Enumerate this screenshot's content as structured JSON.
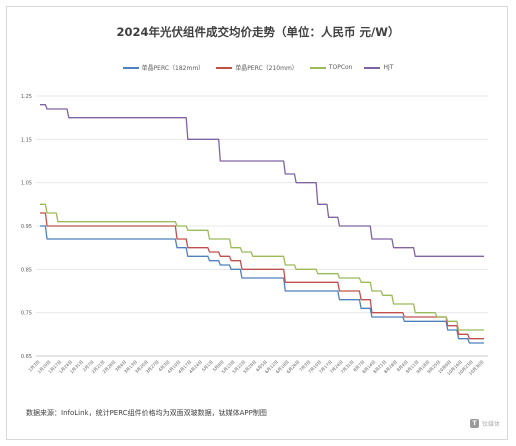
{
  "chart_data": {
    "type": "line",
    "title": "2024年光伏组件成交均价走势（单位：人民币 元/W）",
    "xlabel": "",
    "ylabel": "",
    "ylim": [
      0.65,
      1.25
    ],
    "yticks": [
      "0.65",
      "0.75",
      "0.85",
      "0.95",
      "1.05",
      "1.15",
      "1.25"
    ],
    "grid": true,
    "legend_position": "top",
    "categories": [
      "1月3日",
      "1月10日",
      "1月17日",
      "1月24日",
      "1月31日",
      "2月7日",
      "2月21日",
      "2月28日",
      "3月6日",
      "3月13日",
      "3月20日",
      "3月27日",
      "4月3日",
      "4月10日",
      "4月17日",
      "4月24日",
      "5月1日",
      "5月8日",
      "5月15日",
      "5月22日",
      "5月29日",
      "6月5日",
      "6月12日",
      "6月19日",
      "6月26日",
      "7月3日",
      "7月10日",
      "7月17日",
      "7月24日",
      "7月31日",
      "8月7日",
      "8月14日",
      "8月21日",
      "8月28日",
      "9月4日",
      "9月11日",
      "9月18日",
      "9月25日",
      "10月9日",
      "10月16日",
      "10月23日",
      "10月30日"
    ],
    "series": [
      {
        "name": "单晶PERC（182mm）",
        "color": "#4e81bd",
        "values": [
          0.95,
          0.92,
          0.92,
          0.92,
          0.92,
          0.92,
          0.92,
          0.92,
          0.92,
          0.92,
          0.92,
          0.92,
          0.92,
          0.9,
          0.88,
          0.88,
          0.87,
          0.86,
          0.85,
          0.83,
          0.83,
          0.83,
          0.83,
          0.8,
          0.8,
          0.8,
          0.8,
          0.8,
          0.78,
          0.78,
          0.76,
          0.74,
          0.74,
          0.74,
          0.73,
          0.73,
          0.73,
          0.73,
          0.71,
          0.69,
          0.68,
          0.68
        ]
      },
      {
        "name": "单晶PERC（210mm）",
        "color": "#c0504d",
        "values": [
          0.98,
          0.95,
          0.95,
          0.95,
          0.95,
          0.95,
          0.95,
          0.95,
          0.95,
          0.95,
          0.95,
          0.95,
          0.95,
          0.92,
          0.9,
          0.9,
          0.89,
          0.88,
          0.87,
          0.85,
          0.85,
          0.85,
          0.85,
          0.82,
          0.82,
          0.82,
          0.82,
          0.82,
          0.8,
          0.8,
          0.78,
          0.75,
          0.75,
          0.75,
          0.74,
          0.74,
          0.74,
          0.74,
          0.72,
          0.7,
          0.69,
          0.69
        ]
      },
      {
        "name": "TOPCon",
        "color": "#9bbb59",
        "values": [
          1.0,
          0.98,
          0.96,
          0.96,
          0.96,
          0.96,
          0.96,
          0.96,
          0.96,
          0.96,
          0.96,
          0.96,
          0.96,
          0.95,
          0.94,
          0.94,
          0.92,
          0.92,
          0.9,
          0.89,
          0.88,
          0.88,
          0.88,
          0.86,
          0.85,
          0.85,
          0.84,
          0.84,
          0.83,
          0.83,
          0.82,
          0.8,
          0.79,
          0.77,
          0.77,
          0.75,
          0.75,
          0.74,
          0.73,
          0.71,
          0.71,
          0.71
        ]
      },
      {
        "name": "HJT",
        "color": "#8064a2",
        "values": [
          1.23,
          1.22,
          1.22,
          1.2,
          1.2,
          1.2,
          1.2,
          1.2,
          1.2,
          1.2,
          1.2,
          1.2,
          1.2,
          1.2,
          1.15,
          1.15,
          1.15,
          1.1,
          1.1,
          1.1,
          1.1,
          1.1,
          1.1,
          1.07,
          1.05,
          1.05,
          1.0,
          0.97,
          0.95,
          0.95,
          0.95,
          0.92,
          0.92,
          0.9,
          0.9,
          0.88,
          0.88,
          0.88,
          0.88,
          0.88,
          0.88,
          0.88
        ]
      }
    ]
  },
  "footer": {
    "source": "数据来源：InfoLink，统计PERC组件价格均为双面双玻数据，钛媒体APP制图"
  },
  "watermark": {
    "text": "钛媒体",
    "logo_char": "T"
  }
}
